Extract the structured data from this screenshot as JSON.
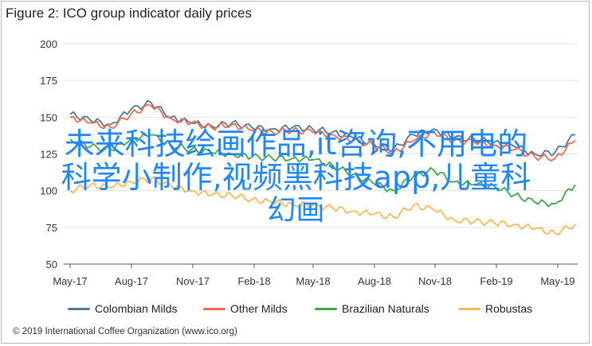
{
  "figure": {
    "title": "Figure 2: ICO group indicator daily prices",
    "footer": "© 2019 International Coffee Organization (www.ico.org)"
  },
  "overlay": {
    "line1": "未来科技绘画作品,it咨询,不用电的",
    "line2": "科学小制作,视频黑科技app,儿童科",
    "line3": "幻画"
  },
  "chart_data": {
    "type": "line",
    "title": "Figure 2: ICO group indicator daily prices",
    "ylabel": "US cents/lb",
    "xlabel": "",
    "ylim": [
      50,
      200
    ],
    "yticks": [
      50,
      75,
      100,
      125,
      150,
      175,
      200
    ],
    "xticks": [
      "May-17",
      "Aug-17",
      "Nov-17",
      "Feb-18",
      "May-18",
      "Aug-18",
      "Nov-18",
      "Feb-19",
      "May-19"
    ],
    "x_range": [
      "2017-05",
      "2019-06"
    ],
    "grid": "horizontal",
    "legend": "bottom",
    "series": [
      {
        "name": "Colombian Milds",
        "color": "#4e7d96",
        "points": [
          [
            "2017-05",
            152
          ],
          [
            "2017-06",
            148
          ],
          [
            "2017-07",
            145
          ],
          [
            "2017-08",
            155
          ],
          [
            "2017-09",
            160
          ],
          [
            "2017-10",
            150
          ],
          [
            "2017-11",
            146
          ],
          [
            "2017-12",
            144
          ],
          [
            "2018-01",
            146
          ],
          [
            "2018-02",
            143
          ],
          [
            "2018-03",
            142
          ],
          [
            "2018-04",
            143
          ],
          [
            "2018-05",
            142
          ],
          [
            "2018-06",
            140
          ],
          [
            "2018-07",
            136
          ],
          [
            "2018-08",
            132
          ],
          [
            "2018-09",
            128
          ],
          [
            "2018-10",
            138
          ],
          [
            "2018-11",
            142
          ],
          [
            "2018-12",
            136
          ],
          [
            "2019-01",
            135
          ],
          [
            "2019-02",
            133
          ],
          [
            "2019-03",
            130
          ],
          [
            "2019-04",
            125
          ],
          [
            "2019-05",
            126
          ],
          [
            "2019-06",
            138
          ]
        ]
      },
      {
        "name": "Other Milds",
        "color": "#f06a4f",
        "points": [
          [
            "2017-05",
            150
          ],
          [
            "2017-06",
            146
          ],
          [
            "2017-07",
            143
          ],
          [
            "2017-08",
            152
          ],
          [
            "2017-09",
            158
          ],
          [
            "2017-10",
            149
          ],
          [
            "2017-11",
            146
          ],
          [
            "2017-12",
            143
          ],
          [
            "2018-01",
            145
          ],
          [
            "2018-02",
            141
          ],
          [
            "2018-03",
            140
          ],
          [
            "2018-04",
            141
          ],
          [
            "2018-05",
            140
          ],
          [
            "2018-06",
            138
          ],
          [
            "2018-07",
            134
          ],
          [
            "2018-08",
            131
          ],
          [
            "2018-09",
            126
          ],
          [
            "2018-10",
            134
          ],
          [
            "2018-11",
            140
          ],
          [
            "2018-12",
            134
          ],
          [
            "2019-01",
            133
          ],
          [
            "2019-02",
            131
          ],
          [
            "2019-03",
            128
          ],
          [
            "2019-04",
            123
          ],
          [
            "2019-05",
            122
          ],
          [
            "2019-06",
            134
          ]
        ]
      },
      {
        "name": "Brazilian Naturals",
        "color": "#3ea74b",
        "points": [
          [
            "2017-05",
            135
          ],
          [
            "2017-06",
            130
          ],
          [
            "2017-07",
            128
          ],
          [
            "2017-08",
            135
          ],
          [
            "2017-09",
            138
          ],
          [
            "2017-10",
            131
          ],
          [
            "2017-11",
            128
          ],
          [
            "2017-12",
            126
          ],
          [
            "2018-01",
            125
          ],
          [
            "2018-02",
            123
          ],
          [
            "2018-03",
            122
          ],
          [
            "2018-04",
            122
          ],
          [
            "2018-05",
            121
          ],
          [
            "2018-06",
            117
          ],
          [
            "2018-07",
            111
          ],
          [
            "2018-08",
            105
          ],
          [
            "2018-09",
            100
          ],
          [
            "2018-10",
            110
          ],
          [
            "2018-11",
            114
          ],
          [
            "2018-12",
            106
          ],
          [
            "2019-01",
            104
          ],
          [
            "2019-02",
            103
          ],
          [
            "2019-03",
            97
          ],
          [
            "2019-04",
            92
          ],
          [
            "2019-05",
            91
          ],
          [
            "2019-06",
            104
          ]
        ]
      },
      {
        "name": "Robustas",
        "color": "#f7b955",
        "points": [
          [
            "2017-05",
            100
          ],
          [
            "2017-06",
            104
          ],
          [
            "2017-07",
            102
          ],
          [
            "2017-08",
            106
          ],
          [
            "2017-09",
            108
          ],
          [
            "2017-10",
            103
          ],
          [
            "2017-11",
            100
          ],
          [
            "2017-12",
            97
          ],
          [
            "2018-01",
            97
          ],
          [
            "2018-02",
            94
          ],
          [
            "2018-03",
            92
          ],
          [
            "2018-04",
            91
          ],
          [
            "2018-05",
            90
          ],
          [
            "2018-06",
            88
          ],
          [
            "2018-07",
            86
          ],
          [
            "2018-08",
            84
          ],
          [
            "2018-09",
            82
          ],
          [
            "2018-10",
            90
          ],
          [
            "2018-11",
            87
          ],
          [
            "2018-12",
            80
          ],
          [
            "2019-01",
            79
          ],
          [
            "2019-02",
            78
          ],
          [
            "2019-03",
            77
          ],
          [
            "2019-04",
            74
          ],
          [
            "2019-05",
            71
          ],
          [
            "2019-06",
            77
          ]
        ]
      }
    ]
  }
}
